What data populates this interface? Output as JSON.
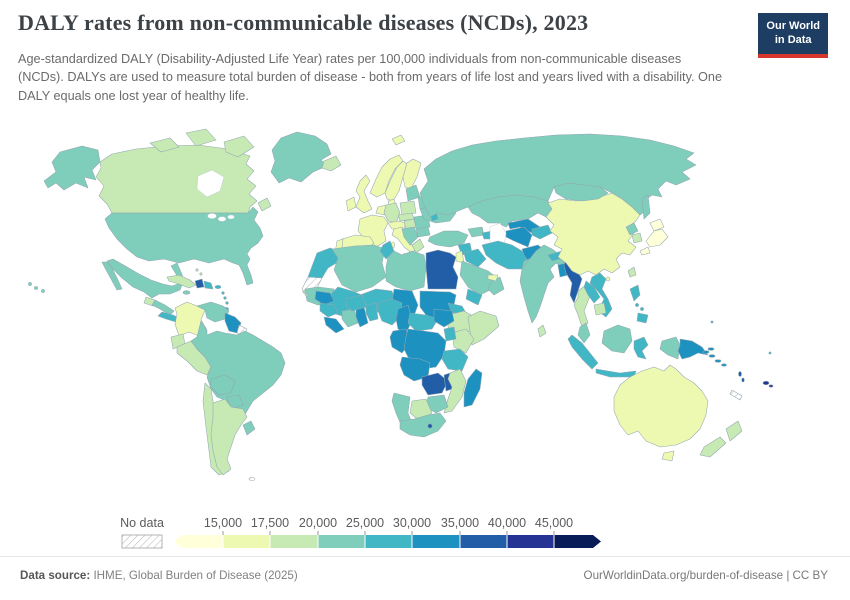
{
  "header": {
    "title": "DALY rates from non-communicable diseases (NCDs), 2023",
    "subtitle": "Age-standardized DALY (Disability-Adjusted Life Year) rates per 100,000 individuals from non-communicable diseases (NCDs). DALYs are used to measure total burden of disease - both from years of life lost and years lived with a disability. One DALY equals one lost year of healthy life.",
    "logo": {
      "line1": "Our World",
      "line2": "in Data",
      "bg": "#1d3d63",
      "accent": "#d7352c"
    }
  },
  "legend": {
    "no_data_label": "No data",
    "tick_labels": [
      "15,000",
      "17,500",
      "20,000",
      "25,000",
      "30,000",
      "35,000",
      "40,000",
      "45,000"
    ]
  },
  "footer": {
    "source_label": "Data source:",
    "source_text": " IHME, Global Burden of Disease (2025)",
    "right_text": "OurWorldinData.org/burden-of-disease | CC BY"
  },
  "chart_data": {
    "type": "choropleth_map",
    "title": "DALY rates from non-communicable diseases (NCDs), 2023",
    "unit": "age-standardized DALYs per 100,000 individuals",
    "year": 2023,
    "legend_shape": "double-arrow color bar",
    "color_scale": {
      "palette": [
        "#ffffd9",
        "#edf8b1",
        "#c7e9b4",
        "#7fcdbb",
        "#41b6c4",
        "#1d91c0",
        "#225ea8",
        "#253494",
        "#081d58"
      ],
      "bin_edges": [
        15000,
        17500,
        20000,
        25000,
        30000,
        35000,
        40000,
        45000
      ],
      "bin_labels": [
        "< 15,000",
        "15,000–17,500",
        "17,500–20,000",
        "20,000–25,000",
        "25,000–30,000",
        "30,000–35,000",
        "35,000–40,000",
        "40,000–45,000",
        "> 45,000"
      ],
      "no_data_bin": -1,
      "no_data_fill": "hatched"
    },
    "regions": [
      {
        "id": "alaska",
        "name": "United States (Alaska)",
        "bin": 3
      },
      {
        "id": "hawaii",
        "name": "United States (Hawaii)",
        "bin": 3
      },
      {
        "id": "canada",
        "name": "Canada",
        "bin": 2
      },
      {
        "id": "canada-arctic-1",
        "name": "Canada (Arctic islands)",
        "bin": 2
      },
      {
        "id": "canada-arctic-2",
        "name": "Canada (Arctic islands)",
        "bin": 2
      },
      {
        "id": "canada-baffin",
        "name": "Canada (Baffin Island)",
        "bin": 2
      },
      {
        "id": "newfoundland",
        "name": "Canada (Newfoundland)",
        "bin": 2
      },
      {
        "id": "greenland",
        "name": "Greenland",
        "bin": 3
      },
      {
        "id": "iceland",
        "name": "Iceland",
        "bin": 2
      },
      {
        "id": "svalbard",
        "name": "Svalbard",
        "bin": 1
      },
      {
        "id": "usa",
        "name": "United States",
        "bin": 3
      },
      {
        "id": "mexico",
        "name": "Mexico",
        "bin": 3
      },
      {
        "id": "baja",
        "name": "Mexico (Baja California)",
        "bin": 3
      },
      {
        "id": "guatemala",
        "name": "Guatemala",
        "bin": 2
      },
      {
        "id": "central-america",
        "name": "Honduras / Nicaragua",
        "bin": 3
      },
      {
        "id": "panama-costa-rica",
        "name": "Costa Rica / Panama",
        "bin": 4
      },
      {
        "id": "cuba",
        "name": "Cuba",
        "bin": 2
      },
      {
        "id": "bahamas",
        "name": "Bahamas",
        "bin": 2
      },
      {
        "id": "jamaica",
        "name": "Jamaica",
        "bin": 3
      },
      {
        "id": "haiti",
        "name": "Haiti",
        "bin": 6
      },
      {
        "id": "dominican-republic",
        "name": "Dominican Republic",
        "bin": 4
      },
      {
        "id": "puerto-rico",
        "name": "Puerto Rico",
        "bin": 4
      },
      {
        "id": "lesser-antilles",
        "name": "Lesser Antilles",
        "bin": 4
      },
      {
        "id": "trinidad",
        "name": "Trinidad and Tobago",
        "bin": 4
      },
      {
        "id": "colombia",
        "name": "Colombia",
        "bin": 1
      },
      {
        "id": "venezuela",
        "name": "Venezuela",
        "bin": 3
      },
      {
        "id": "guyana-suriname",
        "name": "Guyana / Suriname",
        "bin": 5
      },
      {
        "id": "french-guiana",
        "name": "French Guiana",
        "bin": -1
      },
      {
        "id": "ecuador",
        "name": "Ecuador",
        "bin": 2
      },
      {
        "id": "peru",
        "name": "Peru",
        "bin": 2
      },
      {
        "id": "brazil",
        "name": "Brazil",
        "bin": 3
      },
      {
        "id": "bolivia",
        "name": "Bolivia",
        "bin": 3
      },
      {
        "id": "paraguay",
        "name": "Paraguay",
        "bin": 3
      },
      {
        "id": "chile",
        "name": "Chile",
        "bin": 2
      },
      {
        "id": "argentina",
        "name": "Argentina",
        "bin": 2
      },
      {
        "id": "uruguay",
        "name": "Uruguay",
        "bin": 3
      },
      {
        "id": "falkland",
        "name": "Falkland Islands",
        "bin": -1
      },
      {
        "id": "uk",
        "name": "United Kingdom",
        "bin": 1
      },
      {
        "id": "ireland",
        "name": "Ireland",
        "bin": 1
      },
      {
        "id": "norway",
        "name": "Norway",
        "bin": 1
      },
      {
        "id": "sweden",
        "name": "Sweden",
        "bin": 1
      },
      {
        "id": "finland",
        "name": "Finland",
        "bin": 1
      },
      {
        "id": "denmark",
        "name": "Denmark",
        "bin": 1
      },
      {
        "id": "france",
        "name": "France",
        "bin": 1
      },
      {
        "id": "spain",
        "name": "Spain",
        "bin": 1
      },
      {
        "id": "portugal",
        "name": "Portugal",
        "bin": 1
      },
      {
        "id": "germany",
        "name": "Germany",
        "bin": 2
      },
      {
        "id": "benelux",
        "name": "Belgium / Netherlands",
        "bin": 1
      },
      {
        "id": "switzerland-austria",
        "name": "Switzerland / Austria",
        "bin": 1
      },
      {
        "id": "italy",
        "name": "Italy",
        "bin": 1
      },
      {
        "id": "sicily",
        "name": "Italy (Sicily)",
        "bin": 1
      },
      {
        "id": "sardinia",
        "name": "Italy (Sardinia)",
        "bin": 1
      },
      {
        "id": "poland",
        "name": "Poland",
        "bin": 2
      },
      {
        "id": "czech-slovakia",
        "name": "Czechia / Slovakia",
        "bin": 2
      },
      {
        "id": "hungary",
        "name": "Hungary",
        "bin": 2
      },
      {
        "id": "romania",
        "name": "Romania",
        "bin": 3
      },
      {
        "id": "bulgaria",
        "name": "Bulgaria",
        "bin": 3
      },
      {
        "id": "balkans",
        "name": "Western Balkans",
        "bin": 3
      },
      {
        "id": "greece",
        "name": "Greece",
        "bin": 2
      },
      {
        "id": "crete",
        "name": "Greece (Crete)",
        "bin": 2
      },
      {
        "id": "baltics",
        "name": "Baltic states",
        "bin": 3
      },
      {
        "id": "belarus",
        "name": "Belarus",
        "bin": 3
      },
      {
        "id": "ukraine",
        "name": "Ukraine",
        "bin": 3
      },
      {
        "id": "moldova",
        "name": "Moldova",
        "bin": 4
      },
      {
        "id": "russia",
        "name": "Russia",
        "bin": 3
      },
      {
        "id": "sakhalin",
        "name": "Russia (Sakhalin)",
        "bin": 3
      },
      {
        "id": "kazakhstan",
        "name": "Kazakhstan",
        "bin": 3
      },
      {
        "id": "uzbekistan",
        "name": "Uzbekistan",
        "bin": 5
      },
      {
        "id": "turkmenistan",
        "name": "Turkmenistan",
        "bin": 5
      },
      {
        "id": "kyrgyzstan-tajikistan",
        "name": "Kyrgyzstan / Tajikistan",
        "bin": 4
      },
      {
        "id": "georgia-armenia",
        "name": "Georgia / Armenia",
        "bin": 3
      },
      {
        "id": "azerbaijan",
        "name": "Azerbaijan",
        "bin": 4
      },
      {
        "id": "turkey",
        "name": "Turkey",
        "bin": 3
      },
      {
        "id": "syria",
        "name": "Syria",
        "bin": 4
      },
      {
        "id": "iraq",
        "name": "Iraq",
        "bin": 4
      },
      {
        "id": "jordan-israel",
        "name": "Israel / Jordan",
        "bin": 1
      },
      {
        "id": "saudi-arabia",
        "name": "Saudi Arabia",
        "bin": 3
      },
      {
        "id": "yemen",
        "name": "Yemen",
        "bin": 4
      },
      {
        "id": "oman",
        "name": "Oman",
        "bin": 3
      },
      {
        "id": "uae-qatar",
        "name": "United Arab Emirates / Qatar",
        "bin": 1
      },
      {
        "id": "iran",
        "name": "Iran",
        "bin": 4
      },
      {
        "id": "afghanistan",
        "name": "Afghanistan",
        "bin": 5
      },
      {
        "id": "pakistan",
        "name": "Pakistan",
        "bin": 3
      },
      {
        "id": "morocco",
        "name": "Morocco",
        "bin": 4
      },
      {
        "id": "western-sahara",
        "name": "Western Sahara",
        "bin": -1
      },
      {
        "id": "algeria",
        "name": "Algeria",
        "bin": 3
      },
      {
        "id": "tunisia",
        "name": "Tunisia",
        "bin": 4
      },
      {
        "id": "libya",
        "name": "Libya",
        "bin": 3
      },
      {
        "id": "egypt",
        "name": "Egypt",
        "bin": 6
      },
      {
        "id": "mauritania",
        "name": "Mauritania",
        "bin": 3
      },
      {
        "id": "mali",
        "name": "Mali",
        "bin": 4
      },
      {
        "id": "niger",
        "name": "Niger",
        "bin": 4
      },
      {
        "id": "chad",
        "name": "Chad",
        "bin": 5
      },
      {
        "id": "sudan",
        "name": "Sudan",
        "bin": 5
      },
      {
        "id": "eritrea",
        "name": "Eritrea",
        "bin": 4
      },
      {
        "id": "ethiopia",
        "name": "Ethiopia",
        "bin": 2
      },
      {
        "id": "somalia",
        "name": "Somalia",
        "bin": 2
      },
      {
        "id": "kenya",
        "name": "Kenya",
        "bin": 2
      },
      {
        "id": "uganda",
        "name": "Uganda",
        "bin": 4
      },
      {
        "id": "senegal",
        "name": "Senegal / Gambia",
        "bin": 5
      },
      {
        "id": "guinea",
        "name": "Guinea",
        "bin": 4
      },
      {
        "id": "sierra-leone-liberia",
        "name": "Sierra Leone / Liberia",
        "bin": 5
      },
      {
        "id": "ivory-coast",
        "name": "Côte d'Ivoire",
        "bin": 3
      },
      {
        "id": "ghana",
        "name": "Ghana",
        "bin": 5
      },
      {
        "id": "togo-benin",
        "name": "Togo / Benin",
        "bin": 4
      },
      {
        "id": "burkina-faso",
        "name": "Burkina Faso",
        "bin": 4
      },
      {
        "id": "nigeria",
        "name": "Nigeria",
        "bin": 4
      },
      {
        "id": "cameroon",
        "name": "Cameroon",
        "bin": 5
      },
      {
        "id": "central-african-republic",
        "name": "Central African Republic",
        "bin": 4
      },
      {
        "id": "south-sudan",
        "name": "South Sudan",
        "bin": 5
      },
      {
        "id": "gabon-congo",
        "name": "Gabon / Congo",
        "bin": 5
      },
      {
        "id": "dr-congo",
        "name": "Democratic Republic of Congo",
        "bin": 5
      },
      {
        "id": "tanzania",
        "name": "Tanzania",
        "bin": 4
      },
      {
        "id": "angola",
        "name": "Angola",
        "bin": 5
      },
      {
        "id": "zambia",
        "name": "Zambia",
        "bin": 6
      },
      {
        "id": "malawi",
        "name": "Malawi",
        "bin": 6
      },
      {
        "id": "mozambique",
        "name": "Mozambique",
        "bin": 2
      },
      {
        "id": "zimbabwe",
        "name": "Zimbabwe",
        "bin": 3
      },
      {
        "id": "botswana",
        "name": "Botswana",
        "bin": 2
      },
      {
        "id": "namibia",
        "name": "Namibia",
        "bin": 3
      },
      {
        "id": "south-africa",
        "name": "South Africa",
        "bin": 3
      },
      {
        "id": "lesotho",
        "name": "Lesotho",
        "bin": 6
      },
      {
        "id": "madagascar",
        "name": "Madagascar",
        "bin": 5
      },
      {
        "id": "cape-verde",
        "name": "Cape Verde",
        "bin": 2
      },
      {
        "id": "india",
        "name": "India",
        "bin": 3
      },
      {
        "id": "nepal",
        "name": "Nepal",
        "bin": 4
      },
      {
        "id": "bangladesh",
        "name": "Bangladesh",
        "bin": 5
      },
      {
        "id": "sri-lanka",
        "name": "Sri Lanka",
        "bin": 2
      },
      {
        "id": "myanmar",
        "name": "Myanmar",
        "bin": 6
      },
      {
        "id": "thailand",
        "name": "Thailand",
        "bin": 2
      },
      {
        "id": "laos",
        "name": "Laos",
        "bin": 4
      },
      {
        "id": "cambodia",
        "name": "Cambodia",
        "bin": 2
      },
      {
        "id": "vietnam",
        "name": "Vietnam",
        "bin": 4
      },
      {
        "id": "malaysia",
        "name": "Malaysia",
        "bin": 3
      },
      {
        "id": "kalimantan-borneo",
        "name": "Borneo (Indonesia / Malaysia)",
        "bin": 3
      },
      {
        "id": "sumatra",
        "name": "Indonesia (Sumatra)",
        "bin": 4
      },
      {
        "id": "java",
        "name": "Indonesia (Java)",
        "bin": 4
      },
      {
        "id": "sulawesi",
        "name": "Indonesia (Sulawesi)",
        "bin": 4
      },
      {
        "id": "lesser-sunda",
        "name": "Indonesia (Lesser Sunda)",
        "bin": 4
      },
      {
        "id": "indonesian-papua",
        "name": "Indonesia (Papua)",
        "bin": 3
      },
      {
        "id": "papua-new-guinea",
        "name": "Papua New Guinea",
        "bin": 5
      },
      {
        "id": "new-britain",
        "name": "Papua New Guinea (New Britain)",
        "bin": 5
      },
      {
        "id": "philippines-luzon",
        "name": "Philippines (Luzon)",
        "bin": 4
      },
      {
        "id": "philippines-visayas",
        "name": "Philippines (Visayas)",
        "bin": 4
      },
      {
        "id": "philippines-mindanao",
        "name": "Philippines (Mindanao)",
        "bin": 4
      },
      {
        "id": "taiwan",
        "name": "Taiwan",
        "bin": 2
      },
      {
        "id": "china",
        "name": "China",
        "bin": 1
      },
      {
        "id": "hainan",
        "name": "China (Hainan)",
        "bin": 1
      },
      {
        "id": "mongolia",
        "name": "Mongolia",
        "bin": 3
      },
      {
        "id": "north-korea",
        "name": "North Korea",
        "bin": 3
      },
      {
        "id": "south-korea",
        "name": "South Korea",
        "bin": 2
      },
      {
        "id": "japan-hokkaido",
        "name": "Japan (Hokkaido)",
        "bin": 0
      },
      {
        "id": "japan-honshu",
        "name": "Japan (Honshu)",
        "bin": 0
      },
      {
        "id": "japan-kyushu",
        "name": "Japan (Kyushu)",
        "bin": 0
      },
      {
        "id": "solomon-islands",
        "name": "Solomon Islands",
        "bin": 5
      },
      {
        "id": "vanuatu",
        "name": "Vanuatu",
        "bin": 6
      },
      {
        "id": "fiji",
        "name": "Fiji",
        "bin": 7
      },
      {
        "id": "new-caledonia",
        "name": "New Caledonia",
        "bin": -1
      },
      {
        "id": "pacific-islands",
        "name": "Micronesia / Pacific islands",
        "bin": 4
      },
      {
        "id": "australia",
        "name": "Australia",
        "bin": 1
      },
      {
        "id": "tasmania",
        "name": "Australia (Tasmania)",
        "bin": 1
      },
      {
        "id": "new-zealand-north",
        "name": "New Zealand (North Island)",
        "bin": 2
      },
      {
        "id": "new-zealand-south",
        "name": "New Zealand (South Island)",
        "bin": 2
      }
    ]
  }
}
